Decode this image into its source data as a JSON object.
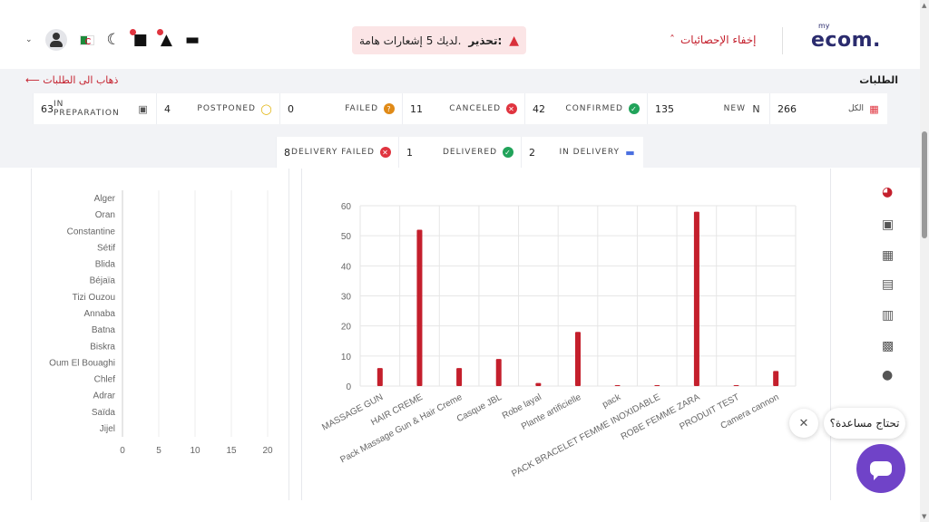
{
  "header": {
    "alert_prefix": "تحذير:",
    "alert_text": "لديك 5 إشعارات هامة.",
    "hide_stats": "إخفاء الإحصائيات",
    "logo_my": "my",
    "logo_ecom": "ecom."
  },
  "orders": {
    "title": "الطلبات",
    "back_link": "ذهاب الى الطلبات"
  },
  "stats_row1": [
    {
      "label": "الكل",
      "value": "266",
      "icon": "all-grid-icon",
      "color": "#e0343f"
    },
    {
      "label": "NEW",
      "value": "135",
      "icon": "new-badge-icon",
      "color": "#333333"
    },
    {
      "label": "CONFIRMED",
      "value": "42",
      "icon": "check-circle-icon",
      "color": "#21a35a"
    },
    {
      "label": "CANCELED",
      "value": "11",
      "icon": "x-circle-icon",
      "color": "#e0343f"
    },
    {
      "label": "FAILED",
      "value": "0",
      "icon": "question-circle-icon",
      "color": "#e08a17"
    },
    {
      "label": "POSTPONED",
      "value": "4",
      "icon": "alarm-clock-icon",
      "color": "#e0b000"
    },
    {
      "label": "IN PREPARATION",
      "value": "63",
      "icon": "box-icon",
      "color": "#555555"
    }
  ],
  "stats_row2": [
    {
      "label": "IN DELIVERY",
      "value": "2",
      "icon": "truck-icon",
      "color": "#4a6fe0"
    },
    {
      "label": "DELIVERED",
      "value": "1",
      "icon": "check-circle-icon",
      "color": "#21a35a"
    },
    {
      "label": "DELIVERY FAILED",
      "value": "8",
      "icon": "x-circle-icon",
      "color": "#e0343f"
    }
  ],
  "help": {
    "bubble_text": "تحتاج مساعدة؟"
  },
  "chart_data": [
    {
      "type": "bar",
      "orientation": "horizontal",
      "categories": [
        "Alger",
        "Oran",
        "Constantine",
        "Sétif",
        "Blida",
        "Béjaïa",
        "Tizi Ouzou",
        "Annaba",
        "Batna",
        "Biskra",
        "Oum El Bouaghi",
        "Chlef",
        "Adrar",
        "Saïda",
        "Jijel"
      ],
      "values": [
        0,
        0,
        0,
        0,
        0,
        0,
        0,
        0,
        0,
        0,
        0,
        0,
        0,
        0,
        0
      ],
      "xlim": [
        0,
        20
      ],
      "xticks": [
        "0",
        "5",
        "10",
        "15",
        "20"
      ],
      "grid": true,
      "color": "#c41f2c"
    },
    {
      "type": "bar",
      "categories": [
        "MASSAGE GUN",
        "HAIR CREME",
        "Pack Massage Gun & Hair Creme",
        "Casque JBL",
        "Robe layal",
        "Plante artificielle",
        "pack",
        "PACK BRACELET FEMME INOXIDABLE",
        "ROBE FEMME ZARA",
        "PRODUIT TEST",
        "Camera cannon"
      ],
      "values": [
        6,
        52,
        6,
        9,
        1,
        18,
        0.3,
        0.3,
        58,
        0.3,
        5
      ],
      "ylim": [
        0,
        60
      ],
      "yticks": [
        "0",
        "10",
        "20",
        "30",
        "40",
        "50",
        "60"
      ],
      "grid": true,
      "color": "#c41f2c"
    }
  ]
}
